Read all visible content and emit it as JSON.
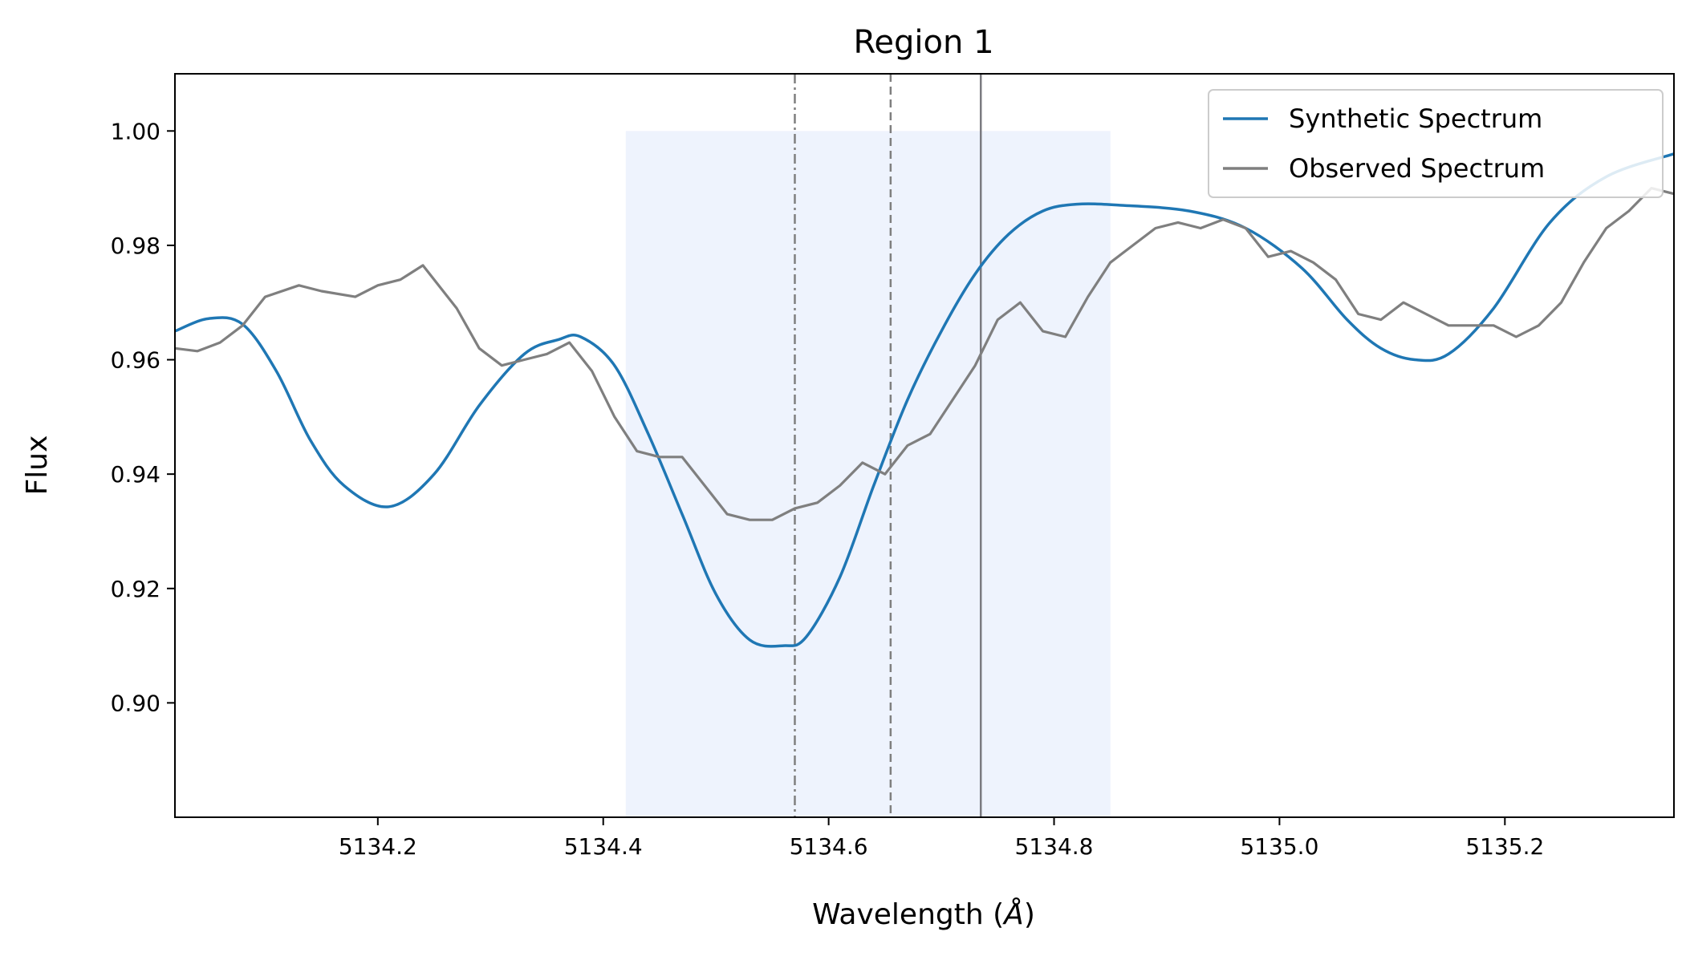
{
  "chart_data": {
    "type": "line",
    "title": "Region 1",
    "xlabel": "Wavelength (",
    "xlabel_unit": "Å",
    "xlabel_close": ")",
    "ylabel": "Flux",
    "xlim": [
      5134.02,
      5135.35
    ],
    "ylim": [
      0.88,
      1.01
    ],
    "xticks": [
      5134.2,
      5134.4,
      5134.6,
      5134.8,
      5135.0,
      5135.2
    ],
    "xtick_labels": [
      "5134.2",
      "5134.4",
      "5134.6",
      "5134.8",
      "5135.0",
      "5135.2"
    ],
    "yticks": [
      0.9,
      0.92,
      0.94,
      0.96,
      0.98,
      1.0
    ],
    "ytick_labels": [
      "0.90",
      "0.92",
      "0.94",
      "0.96",
      "0.98",
      "1.00"
    ],
    "grid": false,
    "legend_position": "top-right",
    "shaded_region": {
      "x": [
        5134.42,
        5134.85
      ],
      "y": [
        0.88,
        1.0
      ],
      "color": "#eef3fd"
    },
    "vertical_lines": [
      {
        "x": 5134.57,
        "style": "dashdot",
        "color": "#7f7f7f"
      },
      {
        "x": 5134.655,
        "style": "dashed",
        "color": "#7f7f7f"
      },
      {
        "x": 5134.735,
        "style": "solid",
        "color": "#7a7a80"
      }
    ],
    "series": [
      {
        "name": "Synthetic Spectrum",
        "color": "#1f77b4",
        "x": [
          5134.02,
          5134.05,
          5134.08,
          5134.11,
          5134.14,
          5134.17,
          5134.21,
          5134.25,
          5134.29,
          5134.33,
          5134.36,
          5134.38,
          5134.41,
          5134.44,
          5134.47,
          5134.5,
          5134.53,
          5134.56,
          5134.58,
          5134.61,
          5134.64,
          5134.67,
          5134.7,
          5134.73,
          5134.76,
          5134.79,
          5134.82,
          5134.86,
          5134.92,
          5134.97,
          5135.02,
          5135.06,
          5135.09,
          5135.12,
          5135.15,
          5135.19,
          5135.24,
          5135.29,
          5135.35
        ],
        "values": [
          0.965,
          0.9672,
          0.9662,
          0.958,
          0.946,
          0.938,
          0.9343,
          0.94,
          0.952,
          0.961,
          0.9635,
          0.964,
          0.959,
          0.947,
          0.933,
          0.919,
          0.911,
          0.91,
          0.9115,
          0.922,
          0.938,
          0.953,
          0.965,
          0.975,
          0.982,
          0.986,
          0.9872,
          0.987,
          0.986,
          0.983,
          0.976,
          0.967,
          0.962,
          0.96,
          0.961,
          0.969,
          0.984,
          0.992,
          0.996
        ]
      },
      {
        "name": "Observed Spectrum",
        "color": "#7f7f7f",
        "x": [
          5134.02,
          5134.04,
          5134.06,
          5134.08,
          5134.1,
          5134.13,
          5134.15,
          5134.18,
          5134.2,
          5134.22,
          5134.24,
          5134.27,
          5134.29,
          5134.31,
          5134.33,
          5134.35,
          5134.37,
          5134.39,
          5134.41,
          5134.43,
          5134.45,
          5134.47,
          5134.49,
          5134.51,
          5134.53,
          5134.55,
          5134.57,
          5134.59,
          5134.61,
          5134.63,
          5134.65,
          5134.67,
          5134.69,
          5134.71,
          5134.73,
          5134.75,
          5134.77,
          5134.79,
          5134.81,
          5134.83,
          5134.85,
          5134.87,
          5134.89,
          5134.91,
          5134.93,
          5134.95,
          5134.97,
          5134.99,
          5135.01,
          5135.03,
          5135.05,
          5135.07,
          5135.09,
          5135.11,
          5135.13,
          5135.15,
          5135.17,
          5135.19,
          5135.21,
          5135.23,
          5135.25,
          5135.27,
          5135.29,
          5135.31,
          5135.33,
          5135.35
        ],
        "values": [
          0.962,
          0.9615,
          0.963,
          0.966,
          0.971,
          0.973,
          0.972,
          0.971,
          0.973,
          0.974,
          0.9765,
          0.969,
          0.962,
          0.959,
          0.96,
          0.961,
          0.963,
          0.958,
          0.95,
          0.944,
          0.943,
          0.943,
          0.938,
          0.933,
          0.932,
          0.932,
          0.934,
          0.935,
          0.938,
          0.942,
          0.94,
          0.945,
          0.947,
          0.953,
          0.959,
          0.967,
          0.97,
          0.965,
          0.964,
          0.971,
          0.977,
          0.98,
          0.983,
          0.984,
          0.983,
          0.9845,
          0.983,
          0.978,
          0.979,
          0.977,
          0.974,
          0.968,
          0.967,
          0.97,
          0.968,
          0.966,
          0.966,
          0.966,
          0.964,
          0.966,
          0.97,
          0.977,
          0.983,
          0.986,
          0.99,
          0.989
        ]
      }
    ]
  }
}
